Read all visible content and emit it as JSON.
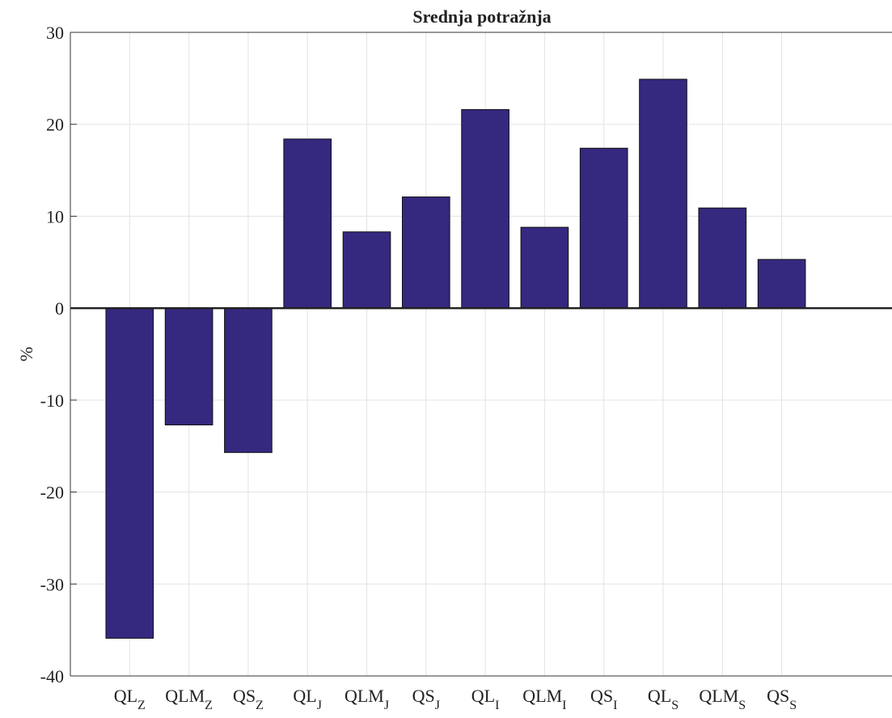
{
  "chart_data": {
    "type": "bar",
    "title": "Srednja potražnja",
    "y_label": "%",
    "categories": [
      {
        "text": "QL",
        "sub": "Z"
      },
      {
        "text": "QLM",
        "sub": "Z"
      },
      {
        "text": "QS",
        "sub": "Z"
      },
      {
        "text": "QL",
        "sub": "J"
      },
      {
        "text": "QLM",
        "sub": "J"
      },
      {
        "text": "QS",
        "sub": "J"
      },
      {
        "text": "QL",
        "sub": "I"
      },
      {
        "text": "QLM",
        "sub": "I"
      },
      {
        "text": "QS",
        "sub": "I"
      },
      {
        "text": "QL",
        "sub": "S"
      },
      {
        "text": "QLM",
        "sub": "S"
      },
      {
        "text": "QS",
        "sub": "S"
      }
    ],
    "values": [
      -35.9,
      -12.7,
      -15.7,
      18.4,
      8.3,
      12.1,
      21.6,
      8.8,
      17.4,
      24.9,
      10.9,
      5.3
    ],
    "color": "#34297f",
    "ylim": [
      -40,
      30
    ],
    "yticks": [
      -40,
      -30,
      -20,
      -10,
      0,
      10,
      20,
      30
    ],
    "grid": true
  }
}
